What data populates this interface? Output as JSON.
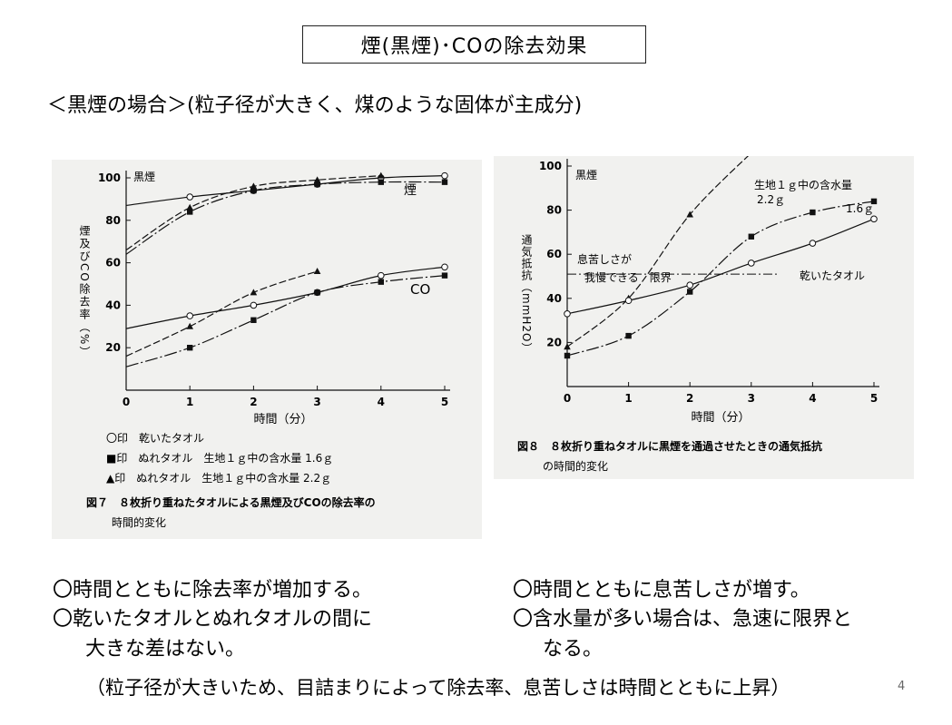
{
  "slide": {
    "title": "煙(黒煙)･COの除去効果",
    "subtitle": "＜黒煙の場合＞(粒子径が大きく、煤のような固体が主成分)",
    "bullets_left": [
      "〇時間とともに除去率が増加する。",
      "〇乾いたタオルとぬれタオルの間に",
      "大きな差はない。"
    ],
    "bullets_right": [
      "〇時間とともに息苦しさが増す。",
      "〇含水量が多い場合は、急速に限界と",
      "なる。"
    ],
    "note": "（粒子径が大きいため、目詰まりによって除去率、息苦しさは時間とともに上昇）",
    "page_number": "4"
  },
  "chart_data": [
    {
      "type": "line",
      "corner_label": "黒煙",
      "ylabel": "煙及びCO除去率（%）",
      "xlabel": "時間（分）",
      "xlim": [
        0,
        5
      ],
      "ylim": [
        0,
        100
      ],
      "x_ticks": [
        "0",
        "1",
        "2",
        "3",
        "4",
        "5"
      ],
      "y_ticks": [
        "20",
        "40",
        "60",
        "80",
        "100"
      ],
      "group_labels": [
        "煙",
        "CO"
      ],
      "legend": [
        "〇印　乾いたタオル",
        "■印　ぬれタオル　生地１ｇ中の含水量 1.6ｇ",
        "▲印　ぬれタオル　生地１ｇ中の含水量 2.2ｇ"
      ],
      "caption_lines": [
        "図７　８枚折り重ねたタオルによる黒煙及びCOの除去率の",
        "時間的変化"
      ],
      "series": [
        {
          "marker": "circle",
          "group": "smoke",
          "x": [
            1,
            2,
            3,
            4,
            5
          ],
          "y": [
            91,
            94,
            97,
            100,
            101
          ]
        },
        {
          "marker": "square",
          "group": "smoke",
          "x": [
            1,
            2,
            3,
            4,
            5
          ],
          "y": [
            84,
            94,
            97,
            98,
            98
          ]
        },
        {
          "marker": "triangle",
          "group": "smoke",
          "x": [
            1,
            2,
            3,
            4
          ],
          "y": [
            86,
            96,
            99,
            101
          ]
        },
        {
          "marker": "circle",
          "group": "co",
          "x": [
            1,
            2,
            3,
            4,
            5
          ],
          "y": [
            35,
            40,
            46,
            54,
            58
          ]
        },
        {
          "marker": "square",
          "group": "co",
          "x": [
            1,
            2,
            3,
            4,
            5
          ],
          "y": [
            20,
            33,
            46,
            51,
            54
          ]
        },
        {
          "marker": "triangle",
          "group": "co",
          "x": [
            1,
            2,
            3
          ],
          "y": [
            30,
            46,
            56
          ]
        }
      ]
    },
    {
      "type": "line",
      "corner_label": "黒煙",
      "ylabel": "通気抵抗（mmH2O）",
      "xlabel": "時間（分）",
      "xlim": [
        0,
        5
      ],
      "ylim": [
        0,
        100
      ],
      "x_ticks": [
        "0",
        "1",
        "2",
        "3",
        "4",
        "5"
      ],
      "y_ticks": [
        "20",
        "40",
        "60",
        "80",
        "100"
      ],
      "limit_value": 51,
      "limit_labels": [
        "息苦しさが",
        "我慢できる　限界"
      ],
      "series_labels": [
        "生地１ｇ中の含水量",
        "2.2ｇ",
        "1.6ｇ",
        "乾いたタオル"
      ],
      "caption_lines": [
        "図８　８枚折り重ねタオルに黒煙を通過させたときの通気抵抗",
        "の時間的変化"
      ],
      "series": [
        {
          "marker": "triangle",
          "x": [
            0,
            1,
            2,
            3
          ],
          "y": [
            18,
            40,
            78,
            106
          ]
        },
        {
          "marker": "square",
          "x": [
            0,
            1,
            2,
            3,
            4,
            5
          ],
          "y": [
            14,
            23,
            43,
            68,
            79,
            84
          ]
        },
        {
          "marker": "circle",
          "x": [
            0,
            1,
            2,
            3,
            4,
            5
          ],
          "y": [
            33,
            39,
            46,
            56,
            65,
            76
          ]
        }
      ]
    }
  ]
}
